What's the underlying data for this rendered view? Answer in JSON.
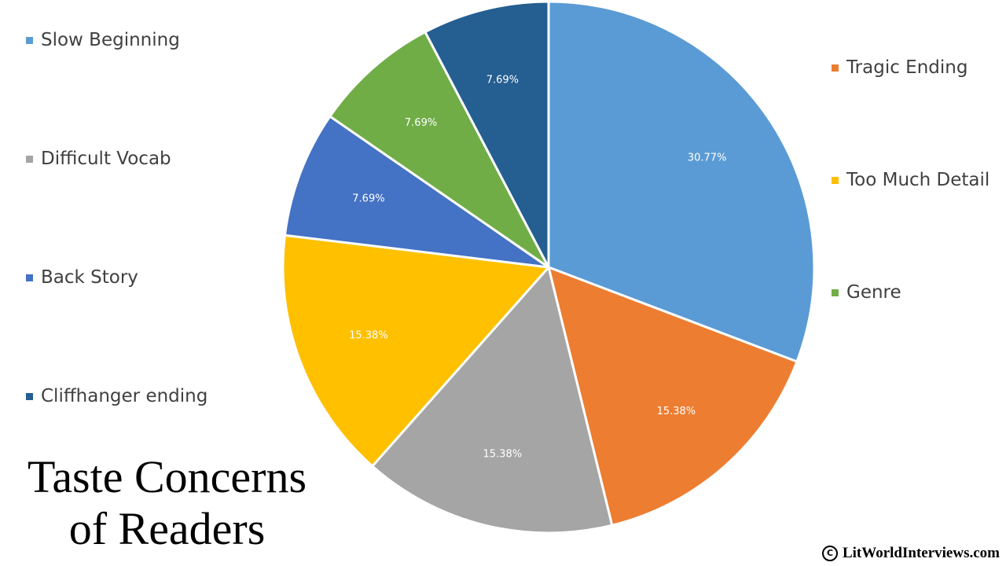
{
  "chart_data": {
    "type": "pie",
    "title_lines": [
      "Taste Concerns",
      "of Readers"
    ],
    "series": [
      {
        "name": "Slow Beginning",
        "value": 30.77,
        "label": "30.77%",
        "color": "#5B9BD5"
      },
      {
        "name": "Tragic Ending",
        "value": 15.38,
        "label": "15.38%",
        "color": "#ED7D31"
      },
      {
        "name": "Difficult Vocab",
        "value": 15.38,
        "label": "15.38%",
        "color": "#A5A5A5"
      },
      {
        "name": "Too Much Detail",
        "value": 15.38,
        "label": "15.38%",
        "color": "#FFC000"
      },
      {
        "name": "Back Story",
        "value": 7.69,
        "label": "7.69%",
        "color": "#4472C4"
      },
      {
        "name": "Genre",
        "value": 7.69,
        "label": "7.69%",
        "color": "#70AD47"
      },
      {
        "name": "Cliffhanger ending",
        "value": 7.69,
        "label": "7.69%",
        "color": "#255E91"
      }
    ],
    "start_angle_deg": 0,
    "direction": "clockwise",
    "legend_left": [
      "Slow Beginning",
      "Difficult Vocab",
      "Back Story",
      "Cliffhanger ending"
    ],
    "legend_right": [
      "Tragic Ending",
      "Too Much Detail",
      "Genre"
    ]
  },
  "copyright": {
    "symbol": "C",
    "text": "LitWorldInterviews.com"
  }
}
